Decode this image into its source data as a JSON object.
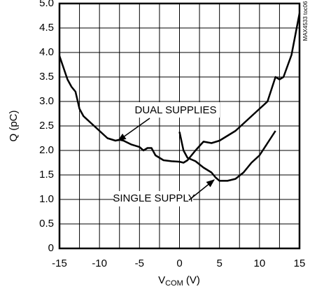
{
  "chart_data": {
    "type": "line",
    "xlabel": [
      "V",
      "COM",
      " (V)"
    ],
    "ylabel": "Q (pC)",
    "side_note": "MAX4533 toc06",
    "xlim": [
      -15,
      15
    ],
    "xticks": [
      -15,
      -10,
      -5,
      0,
      5,
      10,
      15
    ],
    "xminor": [
      -12.5,
      -7.5,
      -2.5,
      2.5,
      7.5,
      12.5
    ],
    "ylim": [
      0,
      5
    ],
    "yticks": [
      0,
      {
        "value": 0.5,
        "label": "0.5"
      },
      {
        "value": 1,
        "label": "1.0"
      },
      {
        "value": 1.5,
        "label": "1.5"
      },
      {
        "value": 2,
        "label": "2.0"
      },
      {
        "value": 2.5,
        "label": "2.5"
      },
      {
        "value": 3,
        "label": "3.0"
      },
      {
        "value": 3.5,
        "label": "3.5"
      },
      {
        "value": 4,
        "label": "4.0"
      },
      {
        "value": 4.5,
        "label": "4.5"
      },
      {
        "value": 5,
        "label": "5.0"
      }
    ],
    "grid": true,
    "series": [
      {
        "name": "DUAL SUPPLIES",
        "color": "#000000",
        "x": [
          -15,
          -14,
          -13.5,
          -13,
          -12.5,
          -12,
          -11,
          -10,
          -9,
          -8,
          -7.5,
          -7,
          -6,
          -5,
          -4.5,
          -4,
          -3.5,
          -3,
          -2,
          -1,
          0,
          0.5,
          1,
          2,
          3,
          4,
          5,
          6,
          7,
          8,
          9,
          10,
          11,
          12,
          12.5,
          13,
          14,
          15
        ],
        "values": [
          3.93,
          3.45,
          3.3,
          3.2,
          2.85,
          2.7,
          2.55,
          2.4,
          2.25,
          2.2,
          2.22,
          2.2,
          2.12,
          2.07,
          2.0,
          2.05,
          2.05,
          1.9,
          1.8,
          1.78,
          1.77,
          1.75,
          1.8,
          2.0,
          2.18,
          2.15,
          2.2,
          2.3,
          2.4,
          2.55,
          2.7,
          2.85,
          3.0,
          3.5,
          3.45,
          3.5,
          3.95,
          4.8
        ]
      },
      {
        "name": "SINGLE SUPPLY",
        "color": "#000000",
        "x": [
          0,
          0.5,
          1,
          2,
          3,
          4,
          4.5,
          5,
          6,
          7,
          8,
          9,
          10,
          11,
          12
        ],
        "values": [
          2.38,
          2.0,
          1.85,
          1.78,
          1.65,
          1.55,
          1.45,
          1.38,
          1.38,
          1.42,
          1.55,
          1.75,
          1.9,
          2.15,
          2.4
        ]
      }
    ]
  }
}
